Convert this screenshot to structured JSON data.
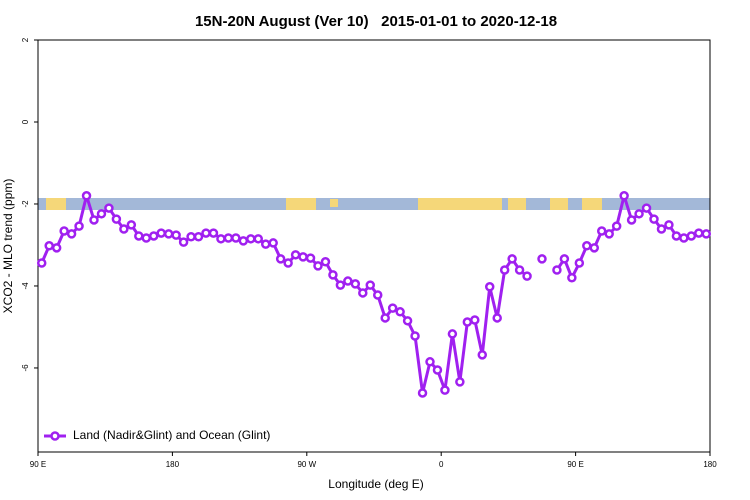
{
  "chart_data": {
    "type": "line",
    "title": "15N-20N August (Ver 10)   2015-01-01 to 2020-12-18",
    "x_label": "Longitude (deg E)",
    "y_label": "XCO2 - MLO trend (ppm)",
    "xlim": [
      90,
      540
    ],
    "xticks": [
      {
        "value": 90,
        "label": "90 E"
      },
      {
        "value": 180,
        "label": "180"
      },
      {
        "value": 270,
        "label": "90 W"
      },
      {
        "value": 360,
        "label": "0"
      },
      {
        "value": 450,
        "label": "90 E"
      },
      {
        "value": 540,
        "label": "180"
      }
    ],
    "ylim": [
      -8.05,
      2
    ],
    "yticks": [
      2,
      0,
      -2,
      -4,
      -6
    ],
    "legend": "bottom-left",
    "x": [
      92.5,
      97.5,
      102.5,
      107.5,
      112.5,
      117.5,
      122.5,
      127.5,
      132.5,
      137.5,
      142.5,
      147.5,
      152.5,
      157.5,
      162.5,
      167.5,
      172.5,
      177.5,
      182.5,
      187.5,
      192.5,
      197.5,
      202.5,
      207.5,
      212.5,
      217.5,
      222.5,
      227.5,
      232.5,
      237.5,
      242.5,
      247.5,
      252.5,
      257.5,
      262.5,
      267.5,
      272.5,
      277.5,
      282.5,
      287.5,
      292.5,
      297.5,
      302.5,
      307.5,
      312.5,
      317.5,
      322.5,
      327.5,
      332.5,
      337.5,
      342.5,
      347.5,
      352.5,
      357.5,
      362.5,
      367.5,
      372.5,
      377.5,
      382.5,
      387.5,
      392.5,
      397.5,
      402.5,
      407.5,
      412.5,
      417.5,
      422.5,
      427.5,
      432.5,
      437.5,
      442.5,
      447.5,
      452.5,
      457.5,
      462.5,
      467.5,
      472.5,
      477.5,
      482.5,
      487.5,
      492.5,
      497.5,
      502.5,
      507.5,
      512.5,
      517.5,
      522.5,
      527.5,
      532.5,
      537.5
    ],
    "series": [
      {
        "name": "Land (Nadir&Glint) and Ocean (Glint)",
        "color": "#a020f0",
        "values": [
          -3.44,
          -3.02,
          -3.07,
          -2.66,
          -2.73,
          -2.54,
          -1.8,
          -2.39,
          -2.24,
          -2.1,
          -2.37,
          -2.61,
          -2.51,
          -2.78,
          -2.83,
          -2.78,
          -2.71,
          -2.73,
          -2.76,
          -2.93,
          -2.8,
          -2.8,
          -2.71,
          -2.71,
          -2.85,
          -2.83,
          -2.83,
          -2.9,
          -2.85,
          -2.85,
          -2.98,
          -2.95,
          -3.34,
          -3.44,
          -3.24,
          -3.29,
          -3.32,
          -3.51,
          -3.41,
          -3.73,
          -3.98,
          -3.88,
          -3.95,
          -4.17,
          -3.98,
          -4.22,
          -4.78,
          -4.54,
          -4.63,
          -4.85,
          -5.22,
          -6.61,
          -5.85,
          -6.05,
          -6.54,
          -5.17,
          -6.34,
          -4.88,
          -4.83,
          -5.68,
          -4.02,
          -4.78,
          -3.61,
          -3.34,
          -3.61,
          -3.76,
          null,
          -3.34,
          null,
          -3.61,
          -3.34,
          -3.8,
          -3.44,
          -3.02,
          -3.07,
          -2.66,
          -2.73,
          -2.54,
          -1.8,
          -2.39,
          -2.24,
          -2.1,
          -2.37,
          -2.61,
          -2.51,
          -2.78,
          -2.83,
          -2.78,
          -2.71,
          -2.73
        ]
      }
    ]
  }
}
